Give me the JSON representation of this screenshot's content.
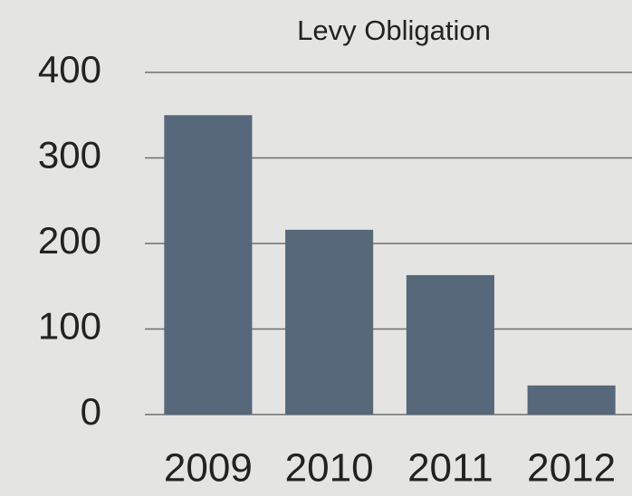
{
  "chart_data": {
    "type": "bar",
    "title": "Levy Obligation",
    "categories": [
      "2009",
      "2010",
      "2011",
      "2012"
    ],
    "values": [
      350,
      216,
      163,
      34
    ],
    "color": "#56687a",
    "ylim": [
      0,
      400
    ],
    "yticks": [
      0,
      100,
      200,
      300,
      400
    ],
    "grid": true
  }
}
